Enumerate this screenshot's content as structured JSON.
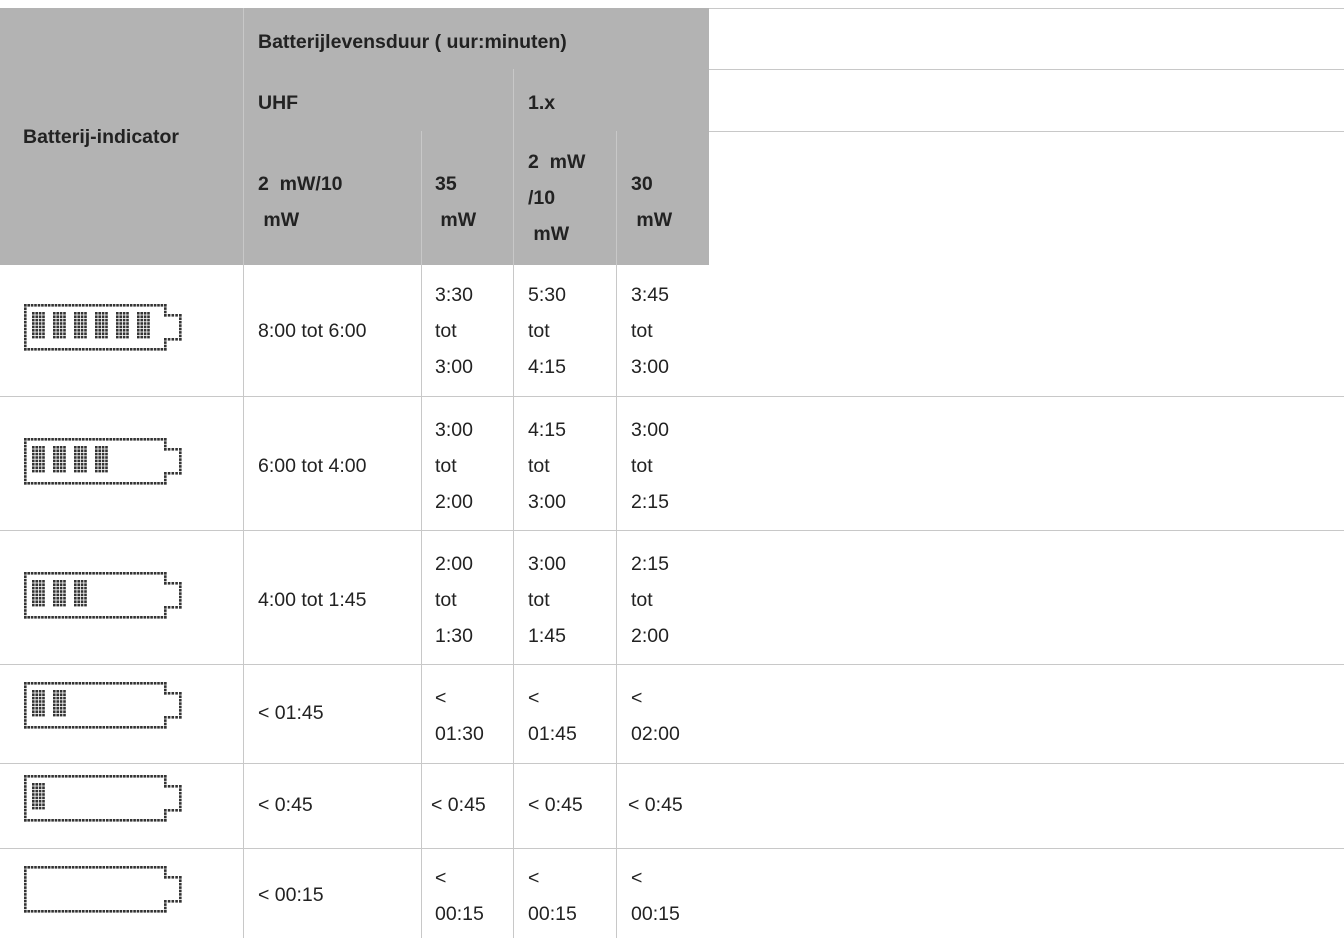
{
  "header": {
    "indicator_label": "Batterij-indicator",
    "group_title": "Batterijlevensduur ( uur:minuten)",
    "uhf_label": "UHF",
    "x1_label": "1.x",
    "sub": [
      [
        "2  mW/10",
        " mW"
      ],
      [
        "35",
        " mW"
      ],
      [
        "2  mW",
        "/10",
        " mW"
      ],
      [
        "30",
        " mW"
      ]
    ]
  },
  "rows": [
    {
      "bars": 6,
      "values": [
        [
          "8:00 tot 6:00"
        ],
        [
          "3:30",
          "tot",
          "3:00"
        ],
        [
          "5:30",
          "tot",
          "4:15"
        ],
        [
          "3:45",
          "tot",
          "3:00"
        ]
      ]
    },
    {
      "bars": 4,
      "values": [
        [
          "6:00 tot 4:00"
        ],
        [
          "3:00",
          "tot",
          "2:00"
        ],
        [
          "4:15",
          "tot",
          "3:00"
        ],
        [
          "3:00",
          "tot",
          "2:15"
        ]
      ]
    },
    {
      "bars": 3,
      "values": [
        [
          "4:00 tot 1:45"
        ],
        [
          "2:00",
          "tot",
          "1:30"
        ],
        [
          "3:00",
          "tot",
          "1:45"
        ],
        [
          "2:15",
          "tot",
          "2:00"
        ]
      ]
    },
    {
      "bars": 2,
      "values": [
        [
          "< 01:45"
        ],
        [
          "<",
          "01:30"
        ],
        [
          "<",
          "01:45"
        ],
        [
          "<",
          "02:00"
        ]
      ]
    },
    {
      "bars": 1,
      "values": [
        [
          "< 0:45"
        ],
        [
          "< 0:45"
        ],
        [
          "< 0:45"
        ],
        [
          "< 0:45"
        ]
      ]
    },
    {
      "bars": 0,
      "values": [
        [
          "< 00:15"
        ],
        [
          "<",
          "00:15"
        ],
        [
          "<",
          "00:15"
        ],
        [
          "<",
          "00:15"
        ]
      ]
    }
  ]
}
